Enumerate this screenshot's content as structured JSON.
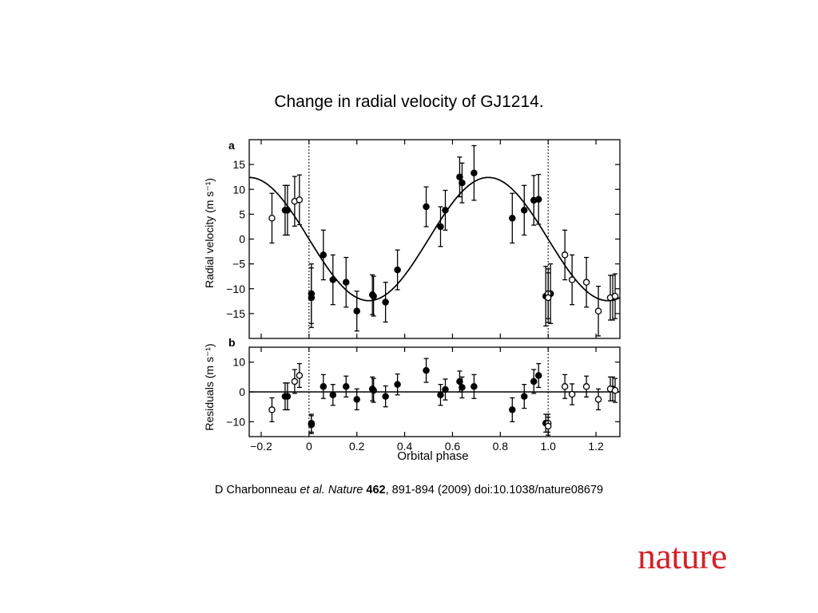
{
  "slide": {
    "title": "Change in radial velocity of GJ1214.",
    "citation": {
      "authors": "D Charbonneau ",
      "etal": "et al.",
      "journal": "Nature",
      "volume": "462",
      "rest": ", 891-894 (2009) doi:10.1038/nature08679"
    },
    "logo": "nature"
  },
  "chart_data": [
    {
      "panel": "a",
      "type": "scatter",
      "ylabel": "Radial velocity (m s⁻¹)",
      "xlim": [
        -0.25,
        1.3
      ],
      "ylim": [
        -20,
        20
      ],
      "yticks": [
        15,
        10,
        5,
        0,
        -5,
        -10,
        -15
      ],
      "yticklabels": [
        "15",
        "10",
        "5",
        "0",
        "−5",
        "−10",
        "−15"
      ],
      "vlines": [
        0.0,
        1.0
      ],
      "model": {
        "amplitude": 12.4,
        "phase_of_max": 0.75
      },
      "series": [
        {
          "marker": "filled",
          "x": [
            -0.1,
            -0.09,
            0.01,
            0.01,
            0.06,
            0.1,
            0.155,
            0.2,
            0.265,
            0.27,
            0.32,
            0.37,
            0.49,
            0.55,
            0.57,
            0.63,
            0.64,
            0.69,
            0.85,
            0.9,
            0.94,
            0.96,
            0.99,
            1.01,
            1.27
          ],
          "y": [
            5.8,
            5.8,
            -11.0,
            -11.8,
            -3.2,
            -8.2,
            -8.7,
            -14.5,
            -11.2,
            -11.5,
            -12.7,
            -6.2,
            6.5,
            2.5,
            5.8,
            12.5,
            11.3,
            13.3,
            4.2,
            5.8,
            7.8,
            8.0,
            -11.5,
            -11.0,
            -11.8
          ],
          "err": [
            5,
            5,
            6,
            6,
            5,
            5,
            5,
            4,
            4,
            4,
            4,
            4,
            4,
            4,
            4,
            4,
            4,
            5.5,
            5,
            5,
            5,
            5,
            6,
            6,
            4.5
          ]
        },
        {
          "marker": "open",
          "x": [
            -0.155,
            -0.06,
            -0.04,
            1.0,
            1.0,
            1.07,
            1.1,
            1.16,
            1.21,
            1.26,
            1.28
          ],
          "y": [
            4.2,
            7.6,
            7.9,
            -11.0,
            -11.8,
            -3.2,
            -8.2,
            -8.7,
            -14.5,
            -11.8,
            -11.5
          ],
          "err": [
            5,
            5,
            5,
            5,
            5,
            5,
            5,
            5,
            5,
            4.5,
            4.5
          ]
        }
      ]
    },
    {
      "panel": "b",
      "type": "scatter",
      "ylabel": "Residuals (m s⁻¹)",
      "xlabel": "Orbital phase",
      "xlim": [
        -0.25,
        1.3
      ],
      "ylim": [
        -15,
        15
      ],
      "yticks": [
        10,
        0,
        -10
      ],
      "yticklabels": [
        "10",
        "0",
        "−10"
      ],
      "xticks": [
        -0.2,
        0,
        0.2,
        0.4,
        0.6,
        0.8,
        1.0,
        1.2
      ],
      "xticklabels": [
        "−0.2",
        "0",
        "0.2",
        "0.4",
        "0.6",
        "0.8",
        "1.0",
        "1.2"
      ],
      "vlines": [
        0.0,
        1.0
      ],
      "series": [
        {
          "marker": "filled",
          "x": [
            -0.1,
            -0.09,
            0.01,
            0.01,
            0.06,
            0.1,
            0.155,
            0.2,
            0.265,
            0.27,
            0.32,
            0.37,
            0.49,
            0.55,
            0.57,
            0.63,
            0.64,
            0.69,
            0.85,
            0.9,
            0.94,
            0.96,
            0.99,
            1.27
          ],
          "y": [
            -1.5,
            -1.5,
            -10.5,
            -11.0,
            1.8,
            -1.0,
            1.8,
            -2.5,
            1.0,
            0.5,
            -1.5,
            2.5,
            7.2,
            -1.0,
            0.8,
            3.5,
            1.5,
            1.8,
            -6.0,
            -1.5,
            3.5,
            5.5,
            -10.5,
            1.0
          ],
          "err": [
            4.5,
            4.5,
            3,
            3,
            4,
            3.5,
            3.5,
            3.5,
            4,
            4,
            3.5,
            3.5,
            4,
            3.5,
            3.5,
            3.5,
            3.5,
            4,
            4,
            4,
            4,
            4,
            3,
            4
          ]
        },
        {
          "marker": "open",
          "x": [
            -0.155,
            -0.06,
            -0.04,
            1.0,
            1.0,
            1.07,
            1.1,
            1.16,
            1.21,
            1.26,
            1.28
          ],
          "y": [
            -6.0,
            3.5,
            5.5,
            -10.5,
            -11.5,
            1.8,
            -0.8,
            1.8,
            -2.5,
            1.0,
            0.5
          ],
          "err": [
            4,
            4,
            4,
            3,
            3,
            4,
            3.5,
            3.5,
            3.5,
            4,
            4
          ]
        }
      ]
    }
  ]
}
